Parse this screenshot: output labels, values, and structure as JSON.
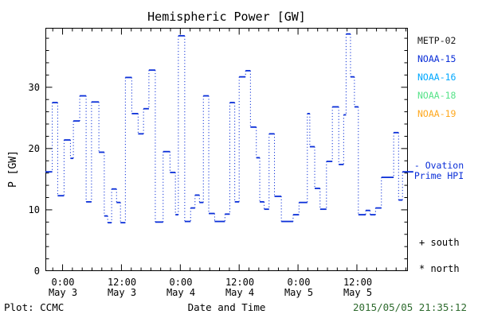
{
  "title": "Hemispheric Power [GW]",
  "y_axis": {
    "label": "P [GW]",
    "ticks": [
      "0",
      "10",
      "20",
      "30"
    ]
  },
  "x_axis": {
    "label": "Date and Time",
    "ticks": [
      {
        "time": "0:00",
        "date": "May 3"
      },
      {
        "time": "12:00",
        "date": "May 3"
      },
      {
        "time": "0:00",
        "date": "May 4"
      },
      {
        "time": "12:00",
        "date": "May 4"
      },
      {
        "time": "0:00",
        "date": "May 5"
      },
      {
        "time": "12:00",
        "date": "May 5"
      }
    ]
  },
  "legend": {
    "satellites": [
      {
        "label": "METP-02",
        "color": "#1a1a1a"
      },
      {
        "label": "NOAA-15",
        "color": "#0b2fd8"
      },
      {
        "label": "NOAA-16",
        "color": "#00a8ff"
      },
      {
        "label": "NOAA-18",
        "color": "#57e389"
      },
      {
        "label": "NOAA-19",
        "color": "#ffa81e"
      }
    ],
    "line_note": {
      "line1": "- Ovation",
      "line2": "Prime HPI",
      "color": "#0b2fd8"
    },
    "markers": [
      {
        "symbol": "+",
        "label": "south"
      },
      {
        "symbol": "*",
        "label": "north"
      }
    ]
  },
  "footer": {
    "credit": "Plot: CCMC",
    "timestamp": "2015/05/05 21:35:12",
    "timestamp_color": "#2e6b2e"
  },
  "chart_data": {
    "type": "line",
    "style": "steps",
    "title": "Hemispheric Power [GW]",
    "xlabel": "Date and Time",
    "ylabel": "P [GW]",
    "series_name": "NOAA-15 Hemispheric Power Index",
    "series_color": "#0b2fd8",
    "x_unit": "hours since 2015-05-03 00:00 UT",
    "xlim": [
      -3.5,
      70.4
    ],
    "ylim": [
      0,
      39.7
    ],
    "y_major_ticks": [
      0,
      10,
      20,
      30
    ],
    "y_minor_step": 2,
    "x_major_step_hours": 12,
    "x_minor_step_hours": 2,
    "end_hour": 71.5,
    "steps": [
      [
        -3.5,
        16.2
      ],
      [
        -2.1,
        27.5
      ],
      [
        -1.0,
        12.3
      ],
      [
        0.3,
        21.4
      ],
      [
        1.6,
        18.4
      ],
      [
        2.2,
        24.5
      ],
      [
        3.5,
        28.6
      ],
      [
        4.8,
        11.3
      ],
      [
        5.9,
        27.6
      ],
      [
        7.4,
        19.4
      ],
      [
        8.5,
        9.0
      ],
      [
        9.2,
        7.9
      ],
      [
        10.0,
        13.4
      ],
      [
        11.0,
        11.2
      ],
      [
        11.8,
        7.9
      ],
      [
        12.8,
        31.6
      ],
      [
        14.1,
        25.7
      ],
      [
        15.4,
        22.4
      ],
      [
        16.5,
        26.5
      ],
      [
        17.6,
        32.8
      ],
      [
        18.9,
        8.0
      ],
      [
        20.5,
        19.5
      ],
      [
        21.9,
        16.1
      ],
      [
        23.0,
        9.2
      ],
      [
        23.6,
        38.4
      ],
      [
        24.9,
        8.1
      ],
      [
        26.1,
        10.3
      ],
      [
        27.0,
        12.4
      ],
      [
        27.9,
        11.2
      ],
      [
        28.7,
        28.6
      ],
      [
        29.8,
        9.4
      ],
      [
        31.0,
        8.1
      ],
      [
        33.1,
        9.3
      ],
      [
        34.1,
        27.5
      ],
      [
        35.1,
        11.3
      ],
      [
        36.0,
        31.7
      ],
      [
        37.3,
        32.7
      ],
      [
        38.3,
        23.5
      ],
      [
        39.5,
        18.5
      ],
      [
        40.2,
        11.3
      ],
      [
        41.1,
        10.1
      ],
      [
        42.1,
        22.4
      ],
      [
        43.2,
        12.2
      ],
      [
        44.6,
        8.1
      ],
      [
        47.0,
        9.2
      ],
      [
        48.2,
        11.2
      ],
      [
        49.9,
        25.7
      ],
      [
        50.4,
        20.3
      ],
      [
        51.4,
        13.5
      ],
      [
        52.5,
        10.1
      ],
      [
        53.8,
        17.9
      ],
      [
        55.0,
        26.8
      ],
      [
        56.3,
        17.4
      ],
      [
        57.3,
        25.5
      ],
      [
        57.8,
        38.7
      ],
      [
        58.7,
        31.7
      ],
      [
        59.5,
        26.8
      ],
      [
        60.3,
        9.2
      ],
      [
        61.8,
        9.9
      ],
      [
        62.7,
        9.2
      ],
      [
        63.8,
        10.3
      ],
      [
        65.0,
        15.3
      ],
      [
        67.5,
        22.6
      ],
      [
        68.5,
        11.6
      ],
      [
        69.3,
        16.2
      ]
    ]
  }
}
